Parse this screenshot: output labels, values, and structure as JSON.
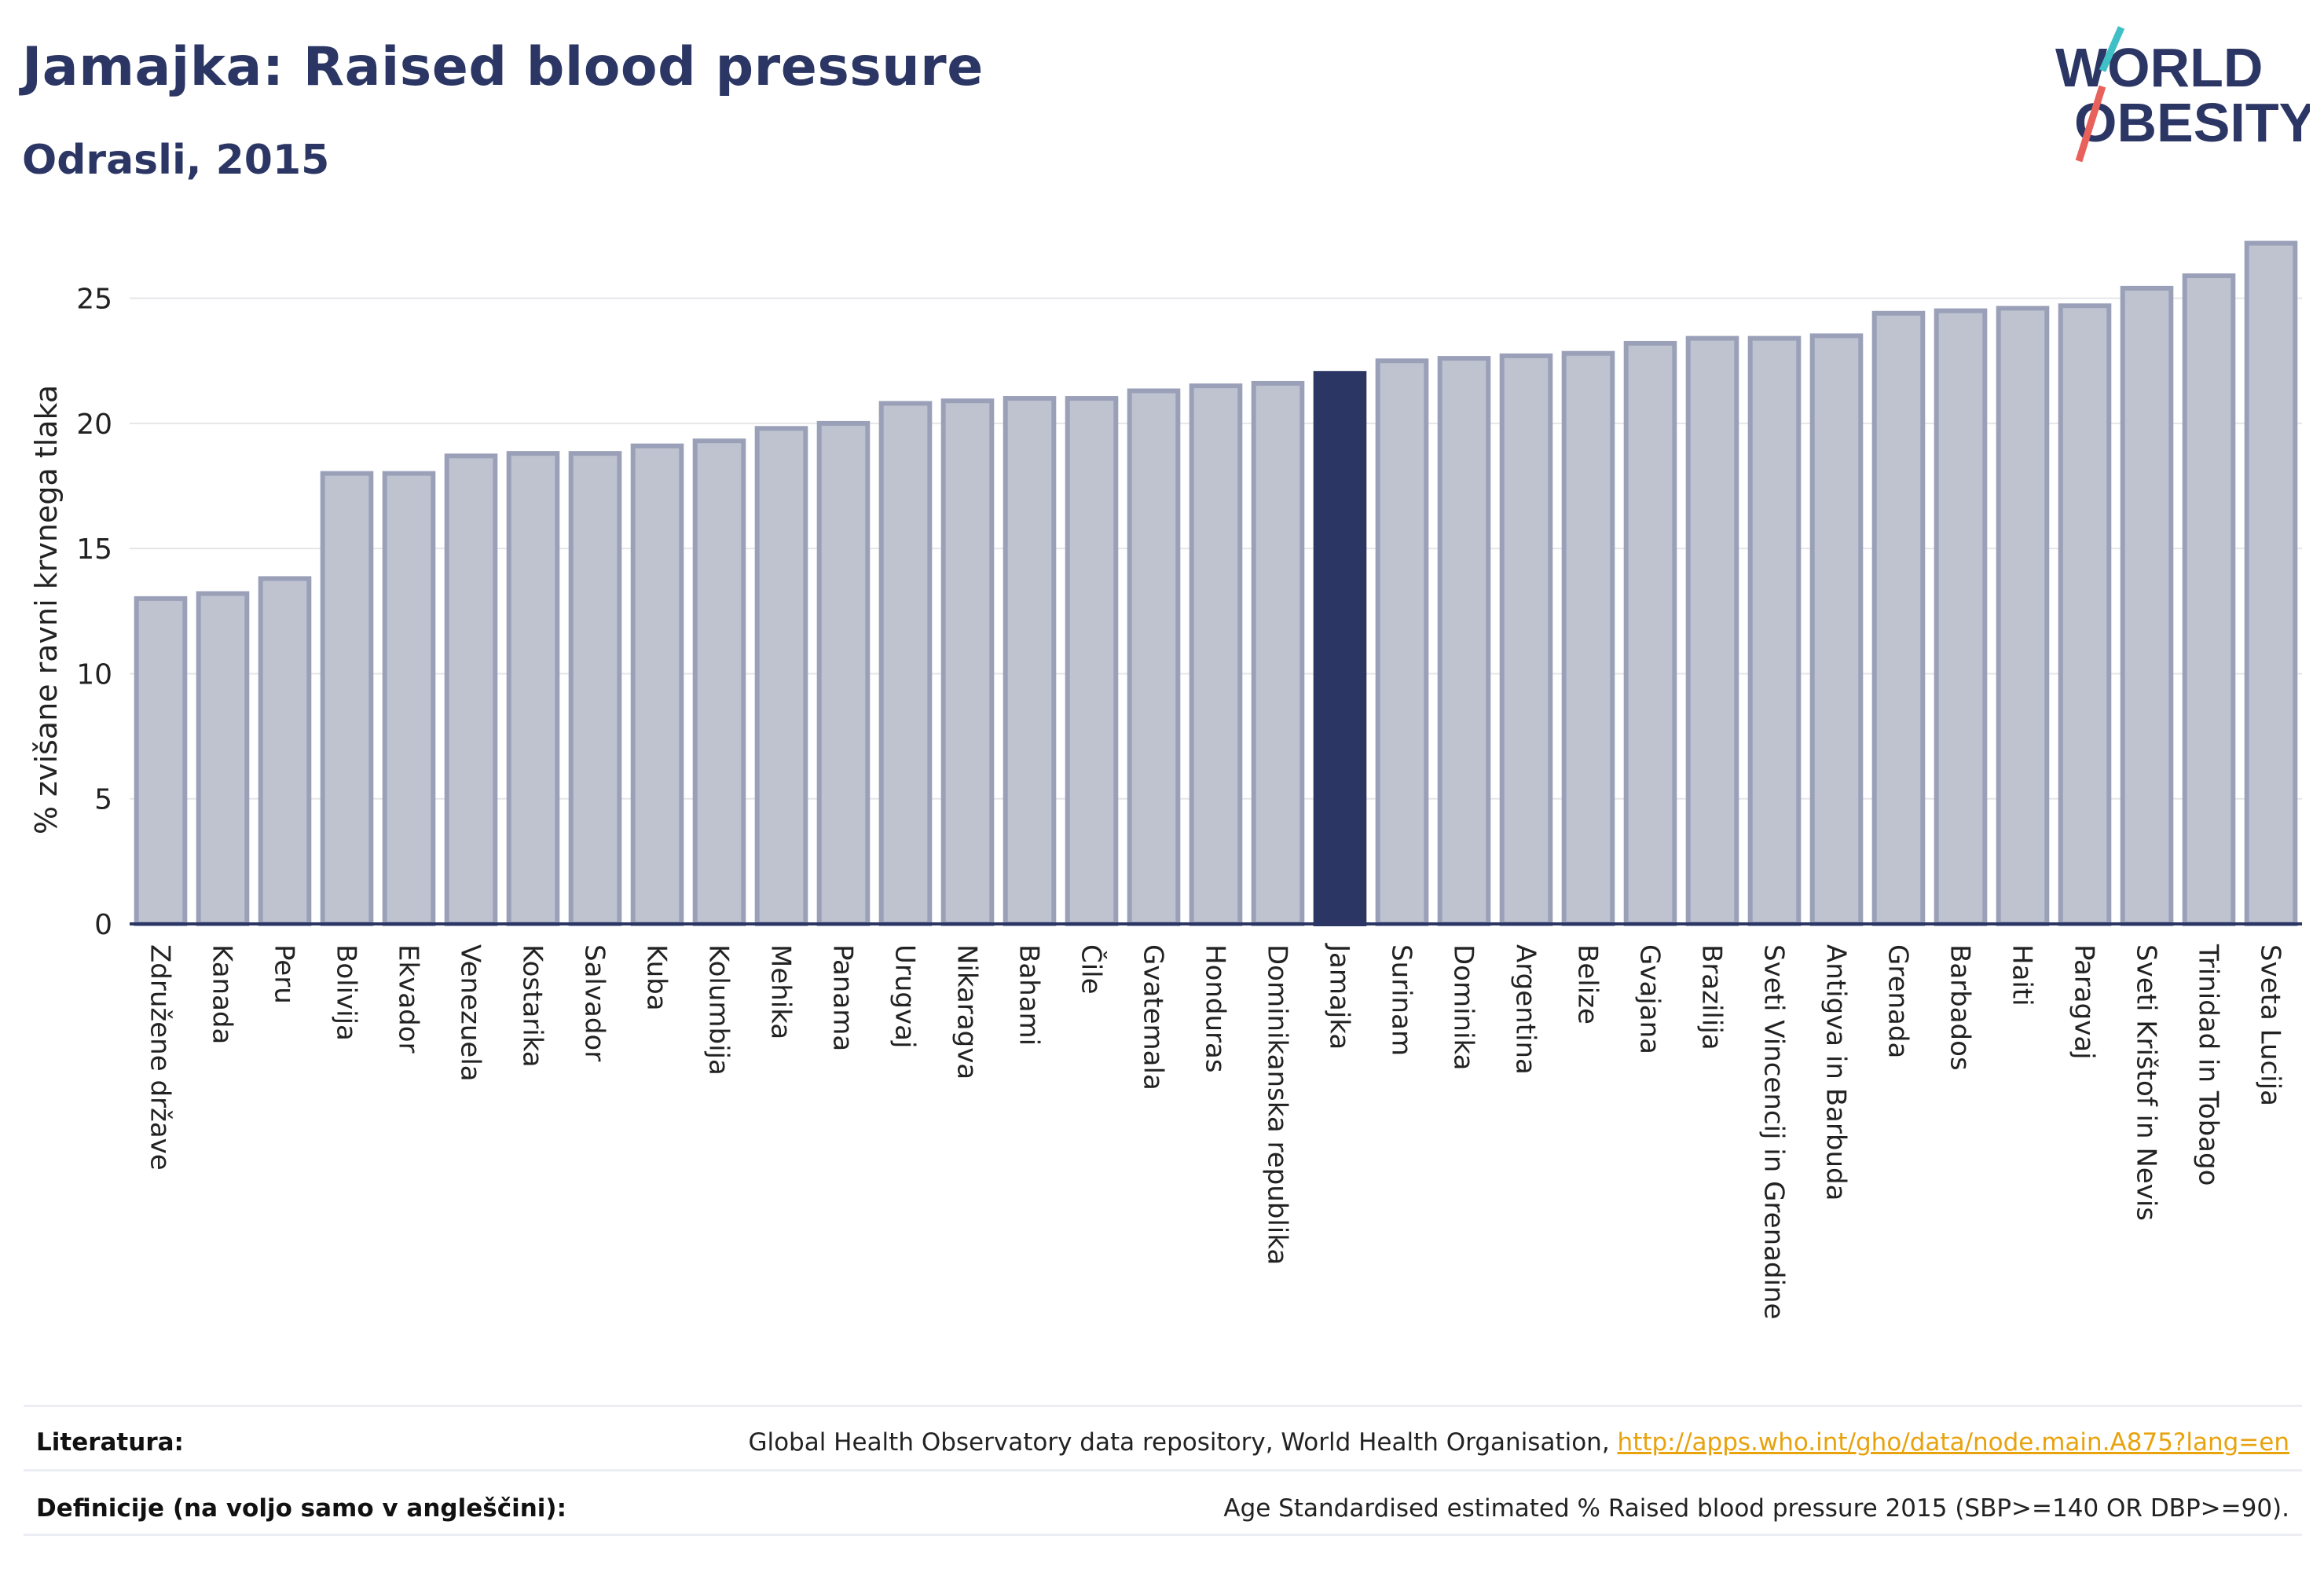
{
  "header": {
    "title": "Jamajka: Raised blood pressure",
    "subtitle": "Odrasli, 2015"
  },
  "logo": {
    "line1": "WORLD",
    "line2": "OBESITY",
    "text_color": "#2b3664",
    "slash_colors": [
      "#3fc0c6",
      "#e8615a"
    ]
  },
  "chart_data": {
    "type": "bar",
    "title": "Jamajka: Raised blood pressure",
    "subtitle": "Odrasli, 2015",
    "ylabel": "% zvišane ravni krvnega tlaka",
    "xlabel": "",
    "ylim": [
      0,
      27.5
    ],
    "yticks": [
      0,
      5,
      10,
      15,
      20,
      25
    ],
    "grid": true,
    "highlight": "Jamajka",
    "colors": {
      "bar_fill": "#bfc3d0",
      "bar_stroke": "#9aa0b8",
      "highlight": "#2b3664",
      "grid": "#e6e6ea",
      "axis": "#2b3664"
    },
    "categories": [
      "Združene države",
      "Kanada",
      "Peru",
      "Bolivija",
      "Ekvador",
      "Venezuela",
      "Kostarika",
      "Salvador",
      "Kuba",
      "Kolumbija",
      "Mehika",
      "Panama",
      "Urugvaj",
      "Nikaragva",
      "Bahami",
      "Čile",
      "Gvatemala",
      "Honduras",
      "Dominikanska republika",
      "Jamajka",
      "Surinam",
      "Dominika",
      "Argentina",
      "Belize",
      "Gvajana",
      "Brazilija",
      "Sveti Vincencij in Grenadine",
      "Antigva in Barbuda",
      "Grenada",
      "Barbados",
      "Haiti",
      "Paragvaj",
      "Sveti Krištof in Nevis",
      "Trinidad in Tobago",
      "Sveta Lucija"
    ],
    "values": [
      13.0,
      13.2,
      13.8,
      18.0,
      18.0,
      18.7,
      18.8,
      18.8,
      19.1,
      19.3,
      19.8,
      20.0,
      20.8,
      20.9,
      21.0,
      21.0,
      21.3,
      21.5,
      21.6,
      22.0,
      22.5,
      22.6,
      22.7,
      22.8,
      23.2,
      23.4,
      23.4,
      23.5,
      24.4,
      24.5,
      24.6,
      24.7,
      25.4,
      25.9,
      27.2
    ]
  },
  "footer": {
    "references_label": "Literatura:",
    "references_text": "Global Health Observatory data repository, World Health Organisation, ",
    "references_link": "http://apps.who.int/gho/data/node.main.A875?lang=en",
    "definitions_label": "Definicije (na voljo samo v angleščini):",
    "definitions_text": "Age Standardised estimated % Raised blood pressure 2015 (SBP>=140 OR DBP>=90)."
  }
}
